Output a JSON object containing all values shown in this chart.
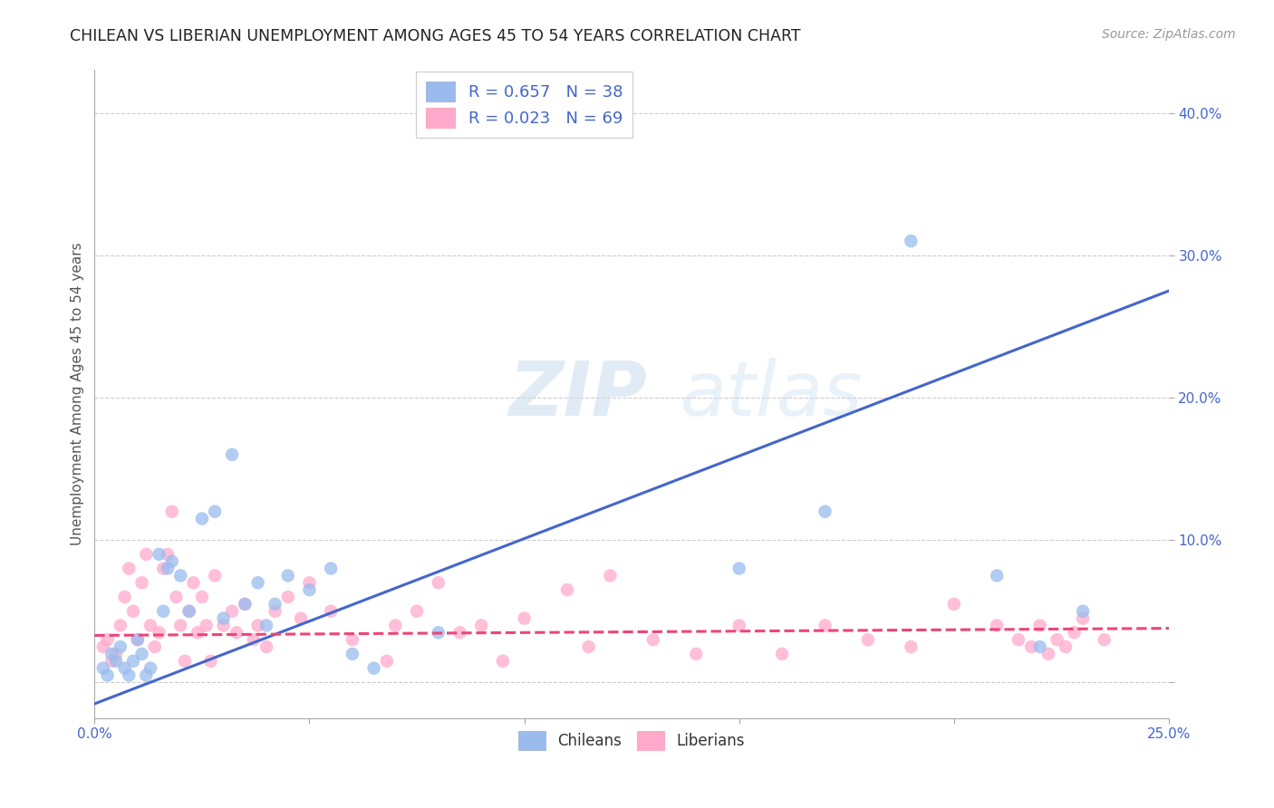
{
  "title": "CHILEAN VS LIBERIAN UNEMPLOYMENT AMONG AGES 45 TO 54 YEARS CORRELATION CHART",
  "source": "Source: ZipAtlas.com",
  "ylabel": "Unemployment Among Ages 45 to 54 years",
  "xlim": [
    0.0,
    0.25
  ],
  "ylim": [
    -0.025,
    0.43
  ],
  "yticks": [
    0.0,
    0.1,
    0.2,
    0.3,
    0.4
  ],
  "xticks": [
    0.0,
    0.05,
    0.1,
    0.15,
    0.2,
    0.25
  ],
  "xtick_labels": [
    "0.0%",
    "",
    "",
    "",
    "",
    "25.0%"
  ],
  "ytick_labels": [
    "",
    "10.0%",
    "20.0%",
    "30.0%",
    "40.0%"
  ],
  "chilean_color": "#99BBEE",
  "liberian_color": "#FFAACC",
  "chilean_line_color": "#4466CC",
  "liberian_line_color": "#EE4477",
  "watermark_zip": "ZIP",
  "watermark_atlas": "atlas",
  "chileans_label": "Chileans",
  "liberians_label": "Liberians",
  "chilean_R": 0.657,
  "chilean_N": 38,
  "liberian_R": 0.023,
  "liberian_N": 69,
  "chilean_line_x0": 0.0,
  "chilean_line_y0": -0.015,
  "chilean_line_x1": 0.25,
  "chilean_line_y1": 0.275,
  "liberian_line_x0": 0.0,
  "liberian_line_y0": 0.033,
  "liberian_line_x1": 0.25,
  "liberian_line_y1": 0.038,
  "chilean_x": [
    0.002,
    0.003,
    0.004,
    0.005,
    0.006,
    0.007,
    0.008,
    0.009,
    0.01,
    0.011,
    0.012,
    0.013,
    0.015,
    0.016,
    0.017,
    0.018,
    0.02,
    0.022,
    0.025,
    0.028,
    0.03,
    0.032,
    0.035,
    0.038,
    0.04,
    0.042,
    0.045,
    0.05,
    0.055,
    0.06,
    0.065,
    0.08,
    0.15,
    0.17,
    0.19,
    0.21,
    0.22,
    0.23
  ],
  "chilean_y": [
    0.01,
    0.005,
    0.02,
    0.015,
    0.025,
    0.01,
    0.005,
    0.015,
    0.03,
    0.02,
    0.005,
    0.01,
    0.09,
    0.05,
    0.08,
    0.085,
    0.075,
    0.05,
    0.115,
    0.12,
    0.045,
    0.16,
    0.055,
    0.07,
    0.04,
    0.055,
    0.075,
    0.065,
    0.08,
    0.02,
    0.01,
    0.035,
    0.08,
    0.12,
    0.31,
    0.075,
    0.025,
    0.05
  ],
  "liberian_x": [
    0.002,
    0.003,
    0.004,
    0.005,
    0.006,
    0.007,
    0.008,
    0.009,
    0.01,
    0.011,
    0.012,
    0.013,
    0.014,
    0.015,
    0.016,
    0.017,
    0.018,
    0.019,
    0.02,
    0.021,
    0.022,
    0.023,
    0.024,
    0.025,
    0.026,
    0.027,
    0.028,
    0.03,
    0.032,
    0.033,
    0.035,
    0.037,
    0.038,
    0.04,
    0.042,
    0.045,
    0.048,
    0.05,
    0.055,
    0.06,
    0.068,
    0.07,
    0.075,
    0.08,
    0.085,
    0.09,
    0.095,
    0.1,
    0.11,
    0.115,
    0.12,
    0.13,
    0.14,
    0.15,
    0.16,
    0.17,
    0.18,
    0.19,
    0.2,
    0.21,
    0.215,
    0.218,
    0.22,
    0.222,
    0.224,
    0.226,
    0.228,
    0.23,
    0.235
  ],
  "liberian_y": [
    0.025,
    0.03,
    0.015,
    0.02,
    0.04,
    0.06,
    0.08,
    0.05,
    0.03,
    0.07,
    0.09,
    0.04,
    0.025,
    0.035,
    0.08,
    0.09,
    0.12,
    0.06,
    0.04,
    0.015,
    0.05,
    0.07,
    0.035,
    0.06,
    0.04,
    0.015,
    0.075,
    0.04,
    0.05,
    0.035,
    0.055,
    0.03,
    0.04,
    0.025,
    0.05,
    0.06,
    0.045,
    0.07,
    0.05,
    0.03,
    0.015,
    0.04,
    0.05,
    0.07,
    0.035,
    0.04,
    0.015,
    0.045,
    0.065,
    0.025,
    0.075,
    0.03,
    0.02,
    0.04,
    0.02,
    0.04,
    0.03,
    0.025,
    0.055,
    0.04,
    0.03,
    0.025,
    0.04,
    0.02,
    0.03,
    0.025,
    0.035,
    0.045,
    0.03
  ]
}
